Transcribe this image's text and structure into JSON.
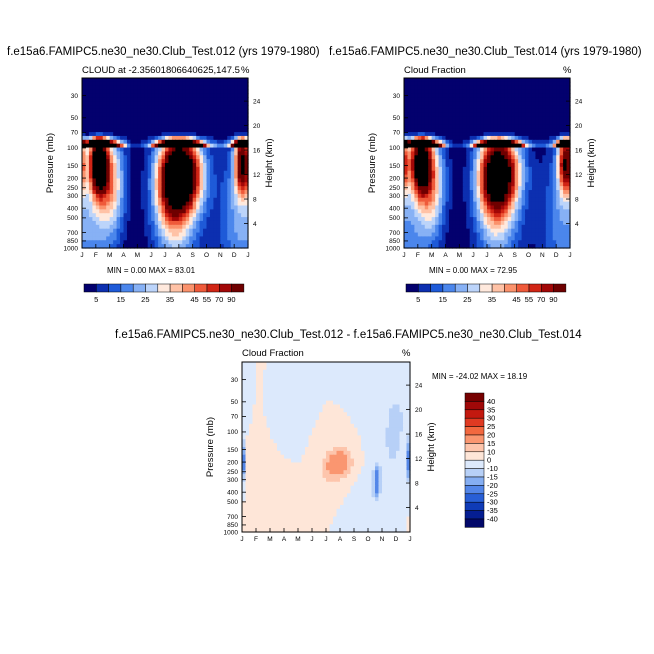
{
  "panels": [
    {
      "title": "f.e15a6.FAMIPC5.ne30_ne30.Club_Test.012 (yrs 1979-1980)",
      "left_label": "CLOUD at -2.35601806640625,147.5",
      "right_label": "%",
      "stats": "MIN =   0.00 MAX =  83.01"
    },
    {
      "title": "f.e15a6.FAMIPC5.ne30_ne30.Club_Test.014 (yrs 1979-1980)",
      "left_label": "Cloud Fraction",
      "right_label": "%",
      "stats": "MIN =   0.00 MAX =  72.95"
    },
    {
      "title": "f.e15a6.FAMIPC5.ne30_ne30.Club_Test.012 - f.e15a6.FAMIPC5.ne30_ne30.Club_Test.014",
      "left_label": "Cloud Fraction",
      "right_label": "%",
      "stats": "MIN = -24.02 MAX =  18.19"
    }
  ],
  "axis": {
    "ylabel": "Pressure (mb)",
    "y2label": "Height (km)",
    "pressure_ticks": [
      "30",
      "50",
      "70",
      "100",
      "150",
      "200",
      "250",
      "300",
      "400",
      "500",
      "700",
      "850",
      "1000"
    ],
    "height_ticks": [
      "24",
      "20",
      "16",
      "12",
      "8",
      "4"
    ],
    "month_ticks": [
      "J",
      "F",
      "M",
      "A",
      "M",
      "J",
      "J",
      "A",
      "S",
      "O",
      "N",
      "D",
      "J"
    ]
  },
  "colorbars": {
    "abs_labels": [
      "5",
      "15",
      "25",
      "35",
      "45",
      "55",
      "70",
      "90"
    ],
    "diff_labels": [
      "40",
      "35",
      "30",
      "25",
      "20",
      "15",
      "10",
      "0",
      "-10",
      "-15",
      "-20",
      "-25",
      "-30",
      "-35",
      "-40"
    ],
    "abs_colors": [
      "#03006e",
      "#0c2fb0",
      "#1e5ad8",
      "#4b86ec",
      "#87b1f5",
      "#bcd4fa",
      "#ffe9dd",
      "#ffc2a6",
      "#fb926c",
      "#ef5a3a",
      "#d12515",
      "#a20707",
      "#6f0000"
    ],
    "diff_colors": [
      "#760000",
      "#a00808",
      "#c3190f",
      "#e03a22",
      "#f2683f",
      "#fa9670",
      "#fdc5ac",
      "#fee6d8",
      "#dce9fc",
      "#b7d0f7",
      "#85aef2",
      "#5386e8",
      "#285fd6",
      "#0f3bb7",
      "#051e92",
      "#02086a"
    ]
  },
  "chart_data": [
    {
      "type": "heatmap",
      "title": "f.e15a6.FAMIPC5.ne30_ne30.Club_Test.012 (yrs 1979-1980)",
      "subtitle": "CLOUD at -2.35601806640625,147.5",
      "xlabel": "",
      "ylabel": "Pressure (mb)",
      "y2label": "Height (km)",
      "units": "%",
      "x_ticks": [
        "J",
        "F",
        "M",
        "A",
        "M",
        "J",
        "J",
        "A",
        "S",
        "O",
        "N",
        "D",
        "J"
      ],
      "y_ticks": [
        30,
        50,
        70,
        100,
        150,
        200,
        250,
        300,
        400,
        500,
        700,
        850,
        1000
      ],
      "y_scale": "log",
      "ylim": [
        1000,
        20
      ],
      "levels": [
        5,
        10,
        15,
        20,
        25,
        30,
        35,
        40,
        45,
        50,
        55,
        60,
        70,
        80,
        90
      ],
      "min": 0.0,
      "max": 83.01,
      "features": [
        {
          "t": 1.2,
          "p": 140,
          "v": 80,
          "st": 0.45,
          "sp": 0.22
        },
        {
          "t": 2.1,
          "p": 220,
          "v": 35,
          "st": 0.7,
          "sp": 0.35
        },
        {
          "t": 7.3,
          "p": 180,
          "v": 75,
          "st": 1.0,
          "sp": 0.25
        },
        {
          "t": 6.5,
          "p": 250,
          "v": 40,
          "st": 0.9,
          "sp": 0.35
        },
        {
          "t": 11.6,
          "p": 140,
          "v": 65,
          "st": 0.4,
          "sp": 0.22
        },
        {
          "t": 0.8,
          "p": 500,
          "v": 18,
          "st": 1.1,
          "sp": 0.55
        },
        {
          "t": 7.0,
          "p": 500,
          "v": 18,
          "st": 1.3,
          "sp": 0.5
        },
        {
          "t": 11.0,
          "p": 500,
          "v": 15,
          "st": 0.9,
          "sp": 0.5
        }
      ]
    },
    {
      "type": "heatmap",
      "title": "f.e15a6.FAMIPC5.ne30_ne30.Club_Test.014 (yrs 1979-1980)",
      "subtitle": "Cloud Fraction",
      "xlabel": "",
      "ylabel": "Pressure (mb)",
      "y2label": "Height (km)",
      "units": "%",
      "x_ticks": [
        "J",
        "F",
        "M",
        "A",
        "M",
        "J",
        "J",
        "A",
        "S",
        "O",
        "N",
        "D",
        "J"
      ],
      "y_ticks": [
        30,
        50,
        70,
        100,
        150,
        200,
        250,
        300,
        400,
        500,
        700,
        850,
        1000
      ],
      "y_scale": "log",
      "ylim": [
        1000,
        20
      ],
      "levels": [
        5,
        10,
        15,
        20,
        25,
        30,
        35,
        40,
        45,
        50,
        55,
        60,
        70,
        80,
        90
      ],
      "min": 0.0,
      "max": 72.95,
      "features": [
        {
          "t": 1.2,
          "p": 140,
          "v": 72,
          "st": 0.5,
          "sp": 0.22
        },
        {
          "t": 2.0,
          "p": 220,
          "v": 35,
          "st": 0.7,
          "sp": 0.35
        },
        {
          "t": 7.0,
          "p": 170,
          "v": 60,
          "st": 1.0,
          "sp": 0.25
        },
        {
          "t": 6.5,
          "p": 250,
          "v": 35,
          "st": 0.9,
          "sp": 0.35
        },
        {
          "t": 11.7,
          "p": 140,
          "v": 62,
          "st": 0.4,
          "sp": 0.22
        },
        {
          "t": 0.8,
          "p": 500,
          "v": 15,
          "st": 1.1,
          "sp": 0.55
        },
        {
          "t": 7.0,
          "p": 500,
          "v": 15,
          "st": 1.3,
          "sp": 0.5
        },
        {
          "t": 11.0,
          "p": 500,
          "v": 13,
          "st": 0.9,
          "sp": 0.5
        }
      ]
    },
    {
      "type": "heatmap",
      "title": "f.e15a6.FAMIPC5.ne30_ne30.Club_Test.012 - f.e15a6.FAMIPC5.ne30_ne30.Club_Test.014",
      "subtitle": "Cloud Fraction",
      "xlabel": "",
      "ylabel": "Pressure (mb)",
      "y2label": "Height (km)",
      "units": "%",
      "x_ticks": [
        "J",
        "F",
        "M",
        "A",
        "M",
        "J",
        "J",
        "A",
        "S",
        "O",
        "N",
        "D",
        "J"
      ],
      "y_ticks": [
        30,
        50,
        70,
        100,
        150,
        200,
        250,
        300,
        400,
        500,
        700,
        850,
        1000
      ],
      "y_scale": "log",
      "ylim": [
        1000,
        20
      ],
      "levels": [
        -40,
        -35,
        -30,
        -25,
        -20,
        -15,
        -10,
        0,
        10,
        15,
        20,
        25,
        30,
        35,
        40
      ],
      "min": -24.02,
      "max": 18.19,
      "features": [
        {
          "t": 7.2,
          "p": 200,
          "v": 17,
          "st": 0.75,
          "sp": 0.14
        },
        {
          "t": 6.2,
          "p": 240,
          "v": 10,
          "st": 0.6,
          "sp": 0.15
        },
        {
          "t": 9.6,
          "p": 320,
          "v": -22,
          "st": 0.18,
          "sp": 0.12
        },
        {
          "t": 3.0,
          "p": 60,
          "v": -8,
          "st": 0.7,
          "sp": 0.2
        },
        {
          "t": 10.6,
          "p": 160,
          "v": -9,
          "st": 1.0,
          "sp": 0.45
        },
        {
          "t": 11.2,
          "p": 60,
          "v": -6,
          "st": 0.7,
          "sp": 0.3
        },
        {
          "t": 0.0,
          "p": 200,
          "v": -15,
          "st": 0.15,
          "sp": 0.15
        },
        {
          "t": 12.0,
          "p": 200,
          "v": -15,
          "st": 0.15,
          "sp": 0.15
        },
        {
          "t": 8.5,
          "p": 700,
          "v": -7,
          "st": 0.6,
          "sp": 0.3
        },
        {
          "t": 1.2,
          "p": 400,
          "v": 4,
          "st": 1.0,
          "sp": 0.5
        },
        {
          "t": 0.6,
          "p": 150,
          "v": 6,
          "st": 0.25,
          "sp": 0.1
        }
      ]
    }
  ]
}
